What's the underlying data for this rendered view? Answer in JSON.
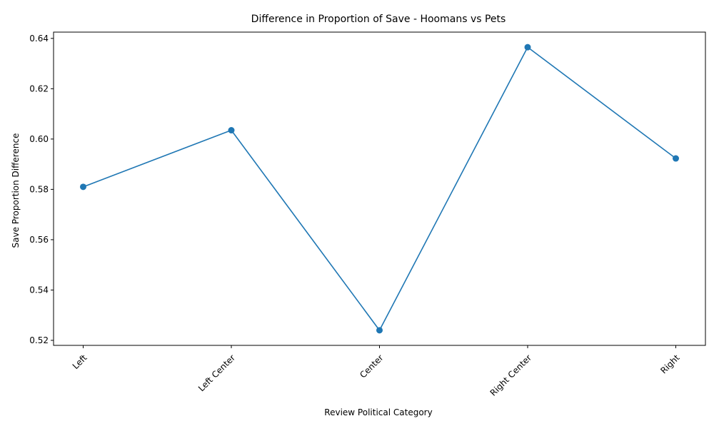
{
  "chart_data": {
    "type": "line",
    "title": "Difference in Proportion of Save - Hoomans vs Pets",
    "xlabel": "Review Political Category",
    "ylabel": "Save Proportion Difference",
    "categories": [
      "Left",
      "Left Center",
      "Center",
      "Right Center",
      "Right"
    ],
    "series": [
      {
        "values": [
          0.581,
          0.6035,
          0.524,
          0.6365,
          0.5923
        ],
        "color": "#1f77b4",
        "marker": "circle"
      }
    ],
    "ylim": [
      0.518,
      0.6425
    ],
    "y_ticks": [
      "0.52",
      "0.54",
      "0.56",
      "0.58",
      "0.60",
      "0.62",
      "0.64"
    ],
    "x_tick_rotation_deg": 45,
    "grid": false,
    "legend": "none"
  }
}
